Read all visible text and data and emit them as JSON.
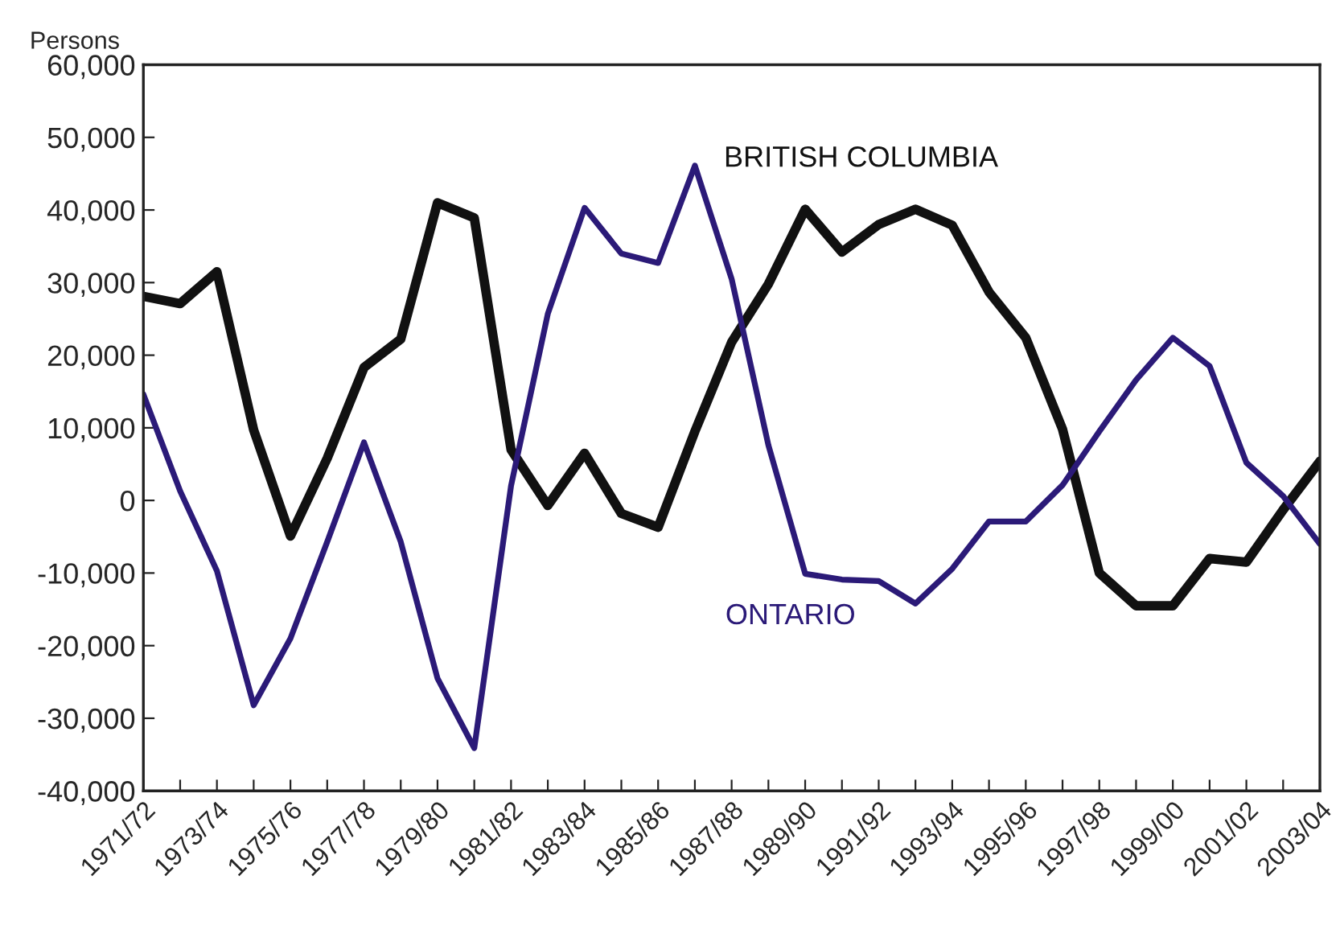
{
  "chart_data": {
    "type": "line",
    "ylabel": "Persons",
    "categories": [
      "1971/72",
      null,
      "1973/74",
      null,
      "1975/76",
      null,
      "1977/78",
      null,
      "1979/80",
      null,
      "1981/82",
      null,
      "1983/84",
      null,
      "1985/86",
      null,
      "1987/88",
      null,
      "1989/90",
      null,
      "1991/92",
      null,
      "1993/94",
      null,
      "1995/96",
      null,
      "1997/98",
      null,
      "1999/00",
      null,
      "2001/02",
      null,
      "2003/04"
    ],
    "series": [
      {
        "name": "BRITISH COLUMBIA",
        "color": "#111111",
        "values": [
          28100,
          27100,
          31500,
          9700,
          -4900,
          5800,
          18300,
          22200,
          41000,
          38900,
          7000,
          -700,
          6500,
          -1800,
          -3700,
          9500,
          21800,
          29800,
          40100,
          34200,
          38000,
          40100,
          37900,
          28700,
          22400,
          9800,
          -10000,
          -14500,
          -14500,
          -8000,
          -8500,
          -1300,
          5400
        ]
      },
      {
        "name": "ONTARIO",
        "color": "#2b1a78",
        "values": [
          14600,
          1300,
          -9700,
          -28200,
          -19000,
          -5700,
          8000,
          -5700,
          -24500,
          -34100,
          2000,
          25700,
          40300,
          34000,
          32700,
          46100,
          30500,
          7600,
          -10100,
          -10900,
          -11100,
          -14200,
          -9400,
          -2900,
          -2900,
          2100,
          9500,
          16600,
          22400,
          18500,
          5200,
          600,
          -6000
        ]
      }
    ],
    "ylim": [
      -40000,
      60000
    ],
    "yticks": [
      {
        "value": -40000,
        "label": "-40,000"
      },
      {
        "value": -30000,
        "label": "-30,000"
      },
      {
        "value": -20000,
        "label": "-20,000"
      },
      {
        "value": -10000,
        "label": "-10,000"
      },
      {
        "value": 0,
        "label": "0"
      },
      {
        "value": 10000,
        "label": "10,000"
      },
      {
        "value": 20000,
        "label": "20,000"
      },
      {
        "value": 30000,
        "label": "30,000"
      },
      {
        "value": 40000,
        "label": "40,000"
      },
      {
        "value": 50000,
        "label": "50,000"
      },
      {
        "value": 60000,
        "label": "60,000"
      }
    ],
    "grid": false,
    "legend": false,
    "marker": "none",
    "line_style": "solid"
  }
}
